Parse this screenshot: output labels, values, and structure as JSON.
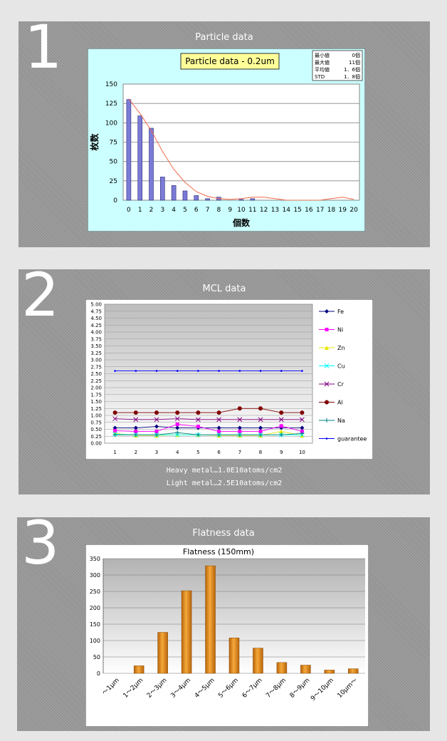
{
  "sections": [
    {
      "number": "1",
      "title": "Particle data"
    },
    {
      "number": "2",
      "title": "MCL data"
    },
    {
      "number": "3",
      "title": "Flatness data"
    }
  ],
  "mcl_caption": {
    "line1": "Heavy metal…1.0E10atoms/cm2",
    "line2": "Light metal…2.5E10atoms/cm2"
  },
  "chart_data": [
    {
      "type": "bar",
      "title": "Particle data - 0.2um",
      "xlabel": "個数",
      "ylabel": "枚数",
      "ylim": [
        0,
        150
      ],
      "yticks": [
        0,
        25,
        50,
        75,
        100,
        125,
        150
      ],
      "categories": [
        "0",
        "1",
        "2",
        "3",
        "4",
        "5",
        "6",
        "7",
        "8",
        "9",
        "10",
        "11",
        "12",
        "13",
        "14",
        "15",
        "16",
        "17",
        "18",
        "19",
        "20"
      ],
      "values": [
        130,
        109,
        93,
        30,
        19,
        12,
        6,
        2,
        4,
        0,
        1,
        2,
        0,
        0,
        0,
        0,
        0,
        0,
        0,
        0,
        0
      ],
      "trend": [
        131,
        112,
        90,
        63,
        40,
        23,
        11,
        5,
        2,
        1,
        2,
        4,
        4,
        2,
        0,
        0,
        0,
        0,
        2,
        4,
        1
      ],
      "colors": {
        "bar": "#7b7bd6",
        "trend": "#f06a4a",
        "background": "#ccffff"
      },
      "stats": [
        {
          "label": "最小値",
          "value": "0個"
        },
        {
          "label": "最大値",
          "value": "11個"
        },
        {
          "label": "平均値",
          "value": "1．6個"
        },
        {
          "label": "STD",
          "value": "1．8個"
        }
      ],
      "grid": true
    },
    {
      "type": "line",
      "x": [
        "1",
        "2",
        "3",
        "4",
        "5",
        "6",
        "7",
        "8",
        "9",
        "10"
      ],
      "ylim": [
        0,
        5
      ],
      "yticks": [
        "0.00",
        "0.25",
        "0.50",
        "0.75",
        "1.00",
        "1.25",
        "1.50",
        "1.75",
        "2.00",
        "2.25",
        "2.50",
        "2.75",
        "3.00",
        "3.25",
        "3.50",
        "3.75",
        "4.00",
        "4.25",
        "4.50",
        "4.75",
        "5.00"
      ],
      "legend_position": "right",
      "series": [
        {
          "name": "Fe",
          "color": "#000080",
          "marker": "diamond",
          "values": [
            0.55,
            0.55,
            0.6,
            0.55,
            0.55,
            0.55,
            0.55,
            0.55,
            0.55,
            0.55
          ]
        },
        {
          "name": "Ni",
          "color": "#ff00ff",
          "marker": "square",
          "values": [
            0.45,
            0.42,
            0.42,
            0.68,
            0.6,
            0.42,
            0.42,
            0.42,
            0.62,
            0.42
          ]
        },
        {
          "name": "Zn",
          "color": "#e8e800",
          "marker": "triangle",
          "values": [
            0.35,
            0.28,
            0.28,
            0.3,
            0.3,
            0.28,
            0.28,
            0.28,
            0.42,
            0.28
          ]
        },
        {
          "name": "Cu",
          "color": "#00ffff",
          "marker": "x",
          "values": [
            0.32,
            0.3,
            0.3,
            0.3,
            0.3,
            0.3,
            0.3,
            0.3,
            0.3,
            0.3
          ]
        },
        {
          "name": "Cr",
          "color": "#800080",
          "marker": "x",
          "values": [
            0.88,
            0.85,
            0.85,
            0.88,
            0.85,
            0.85,
            0.85,
            0.85,
            0.85,
            0.85
          ]
        },
        {
          "name": "Al",
          "color": "#800000",
          "marker": "circle",
          "values": [
            1.1,
            1.1,
            1.1,
            1.1,
            1.1,
            1.1,
            1.25,
            1.25,
            1.1,
            1.1
          ]
        },
        {
          "name": "Na",
          "color": "#008080",
          "marker": "plus",
          "values": [
            0.3,
            0.3,
            0.3,
            0.38,
            0.3,
            0.3,
            0.3,
            0.3,
            0.3,
            0.35
          ]
        },
        {
          "name": "guarantee",
          "color": "#0000ff",
          "marker": "dot",
          "values": [
            2.6,
            2.6,
            2.6,
            2.6,
            2.6,
            2.6,
            2.6,
            2.6,
            2.6,
            2.6
          ]
        }
      ],
      "grid": true
    },
    {
      "type": "bar",
      "title": "Flatness (150mm)",
      "ylim": [
        0,
        350
      ],
      "yticks": [
        0,
        50,
        100,
        150,
        200,
        250,
        300,
        350
      ],
      "categories": [
        "～1μm",
        "1～2μm",
        "2～3μm",
        "3～4μm",
        "4～5μm",
        "5～6μm",
        "6～7μm",
        "7～8μm",
        "8～9μm",
        "9～10μm",
        "10μm～"
      ],
      "values": [
        0,
        23,
        125,
        252,
        328,
        108,
        77,
        33,
        25,
        10,
        14
      ],
      "colors": {
        "bar": "#e8901c"
      },
      "grid": true
    }
  ]
}
